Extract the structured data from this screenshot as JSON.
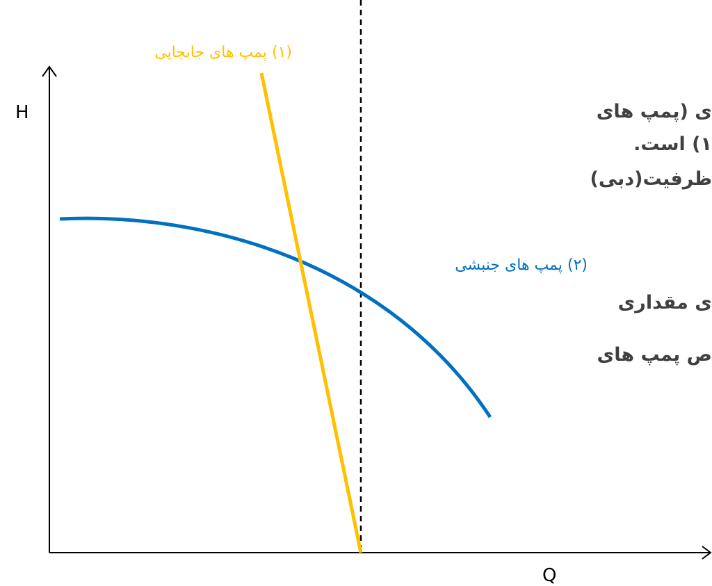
{
  "axes": {
    "y_label": "H",
    "x_label": "Q"
  },
  "curves": [
    {
      "label": "(۱) پمپ های جابجایی"
    },
    {
      "label": "(۲) پمپ های جنبشی"
    }
  ],
  "text_lines": [
    "ی (پمپ های",
    "۱) است.",
    "ظرفیت(دبی)",
    "ی مقداری",
    "ص پمپ های"
  ]
}
